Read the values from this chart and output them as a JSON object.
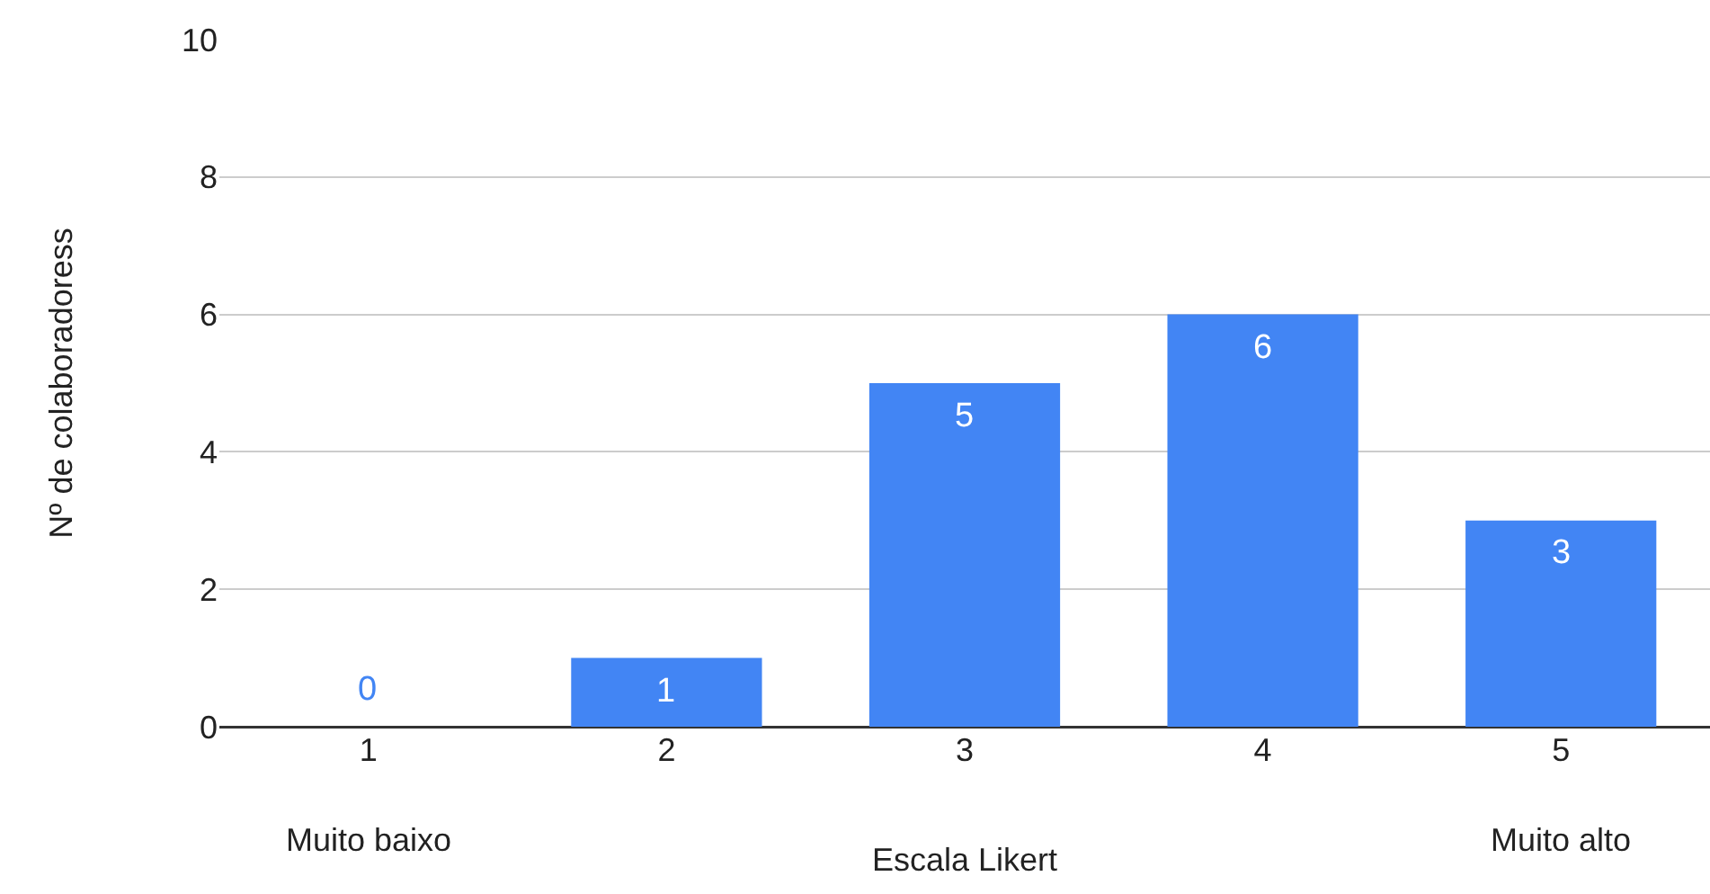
{
  "chart_data": {
    "type": "bar",
    "xlabel": "Escala Likert",
    "ylabel": "Nº de colaboradoress",
    "categories": [
      "1",
      "2",
      "3",
      "4",
      "5"
    ],
    "values": [
      0,
      1,
      5,
      6,
      3
    ],
    "color": "#4285f4",
    "data_labels": true,
    "ylim": [
      0,
      10
    ],
    "yticks": [
      0,
      2,
      4,
      6,
      8,
      10
    ],
    "grid": "y",
    "legend": false,
    "annotations": [
      "Muito baixo",
      "Muito alto"
    ]
  }
}
